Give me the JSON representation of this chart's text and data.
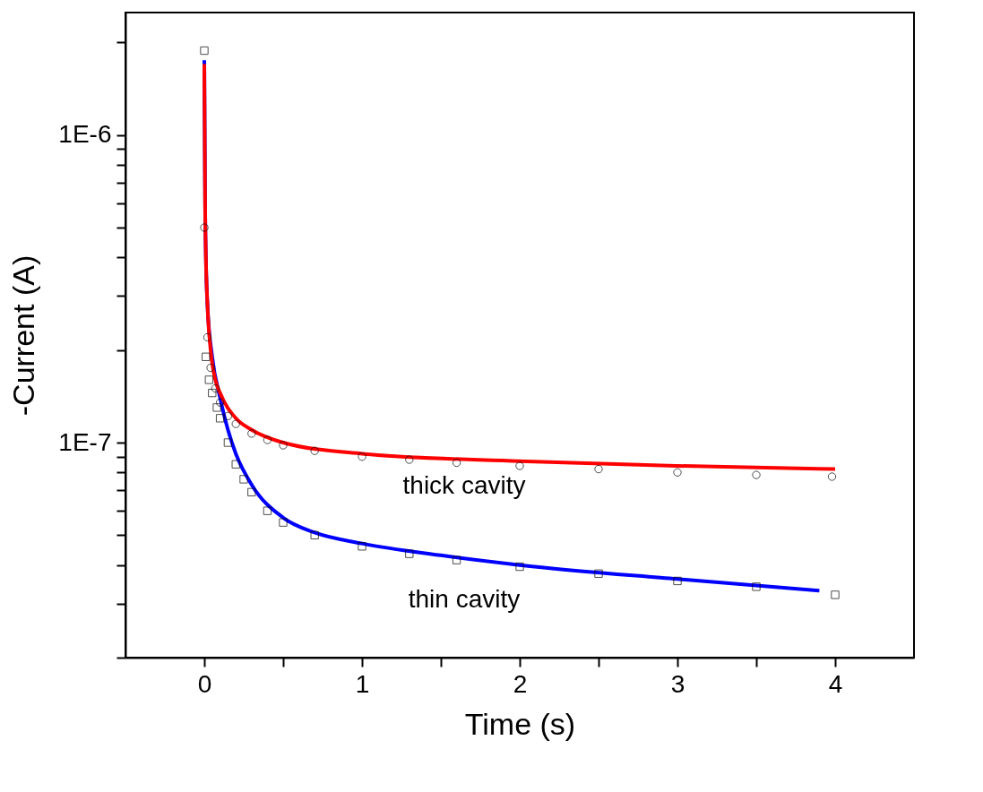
{
  "chart_data": {
    "type": "scatter",
    "xlabel": "Time (s)",
    "ylabel": "-Current (A)",
    "log": "y",
    "grid": false,
    "xlim": [
      -0.5,
      4.5
    ],
    "xticks": [
      0,
      1,
      2,
      3,
      4,
      {
        "value": 0.5,
        "label": null
      },
      {
        "value": 1.5,
        "label": null
      },
      {
        "value": 2.5,
        "label": null
      },
      {
        "value": 3.5,
        "label": null
      }
    ],
    "ylim": [
      2e-08,
      2.5e-06
    ],
    "yticks": [
      {
        "value": 1e-07,
        "label": "1E-7"
      },
      {
        "value": 1e-06,
        "label": "1E-6"
      },
      {
        "value": 2e-08,
        "label": null
      },
      {
        "value": 3e-08,
        "label": null
      },
      {
        "value": 4e-08,
        "label": null
      },
      {
        "value": 5e-08,
        "label": null
      },
      {
        "value": 6e-08,
        "label": null
      },
      {
        "value": 7e-08,
        "label": null
      },
      {
        "value": 8e-08,
        "label": null
      },
      {
        "value": 9e-08,
        "label": null
      },
      {
        "value": 2e-07,
        "label": null
      },
      {
        "value": 3e-07,
        "label": null
      },
      {
        "value": 4e-07,
        "label": null
      },
      {
        "value": 5e-07,
        "label": null
      },
      {
        "value": 6e-07,
        "label": null
      },
      {
        "value": 7e-07,
        "label": null
      },
      {
        "value": 8e-07,
        "label": null
      },
      {
        "value": 9e-07,
        "label": null
      },
      {
        "value": 2e-06,
        "label": null
      }
    ],
    "series": [
      {
        "marker": "circle",
        "color": "#000000",
        "x": [
          0,
          0.02,
          0.04,
          0.07,
          0.1,
          0.15,
          0.2,
          0.3,
          0.4,
          0.5,
          0.7,
          1.0,
          1.3,
          1.6,
          2.0,
          2.5,
          3.0,
          3.5,
          3.98
        ],
        "values": [
          5e-07,
          2.2e-07,
          1.75e-07,
          1.5e-07,
          1.35e-07,
          1.22e-07,
          1.15e-07,
          1.07e-07,
          1.02e-07,
          9.8e-08,
          9.4e-08,
          9e-08,
          8.8e-08,
          8.6e-08,
          8.4e-08,
          8.2e-08,
          8e-08,
          7.85e-08,
          7.75e-08
        ]
      },
      {
        "marker": "square",
        "color": "#000000",
        "x": [
          0,
          0.01,
          0.03,
          0.05,
          0.08,
          0.1,
          0.15,
          0.2,
          0.25,
          0.3,
          0.4,
          0.5,
          0.7,
          1.0,
          1.3,
          1.6,
          2.0,
          2.5,
          3.0,
          3.5,
          4.0
        ],
        "values": [
          1.88e-06,
          1.9e-07,
          1.6e-07,
          1.45e-07,
          1.3e-07,
          1.2e-07,
          1e-07,
          8.5e-08,
          7.6e-08,
          6.9e-08,
          6e-08,
          5.5e-08,
          5e-08,
          4.6e-08,
          4.35e-08,
          4.15e-08,
          3.95e-08,
          3.75e-08,
          3.55e-08,
          3.4e-08,
          3.2e-08
        ]
      },
      {
        "type": "line",
        "marker": "none",
        "line_style": "solid",
        "color": "#0000ff",
        "x": [
          0,
          0.005,
          0.01,
          0.02,
          0.05,
          0.1,
          0.15,
          0.2,
          0.3,
          0.5,
          0.7,
          1.0,
          1.5,
          2.0,
          3.0,
          3.9
        ],
        "values": [
          1.75e-06,
          6e-07,
          4e-07,
          2.8e-07,
          1.9e-07,
          1.4e-07,
          1.1e-07,
          9.2e-08,
          7.3e-08,
          5.7e-08,
          5.1e-08,
          4.7e-08,
          4.3e-08,
          4e-08,
          3.6e-08,
          3.3e-08
        ]
      },
      {
        "type": "line",
        "marker": "none",
        "line_style": "solid",
        "color": "#ff0000",
        "x": [
          0,
          0.005,
          0.01,
          0.02,
          0.04,
          0.07,
          0.1,
          0.2,
          0.3,
          0.5,
          1.0,
          2.0,
          3.0,
          4.0
        ],
        "values": [
          1.7e-06,
          6e-07,
          4e-07,
          2.8e-07,
          2e-07,
          1.6e-07,
          1.45e-07,
          1.2e-07,
          1.1e-07,
          1e-07,
          9.2e-08,
          8.7e-08,
          8.4e-08,
          8.2e-08
        ]
      }
    ],
    "annotations": [
      "thick cavity",
      "thin cavity"
    ]
  }
}
